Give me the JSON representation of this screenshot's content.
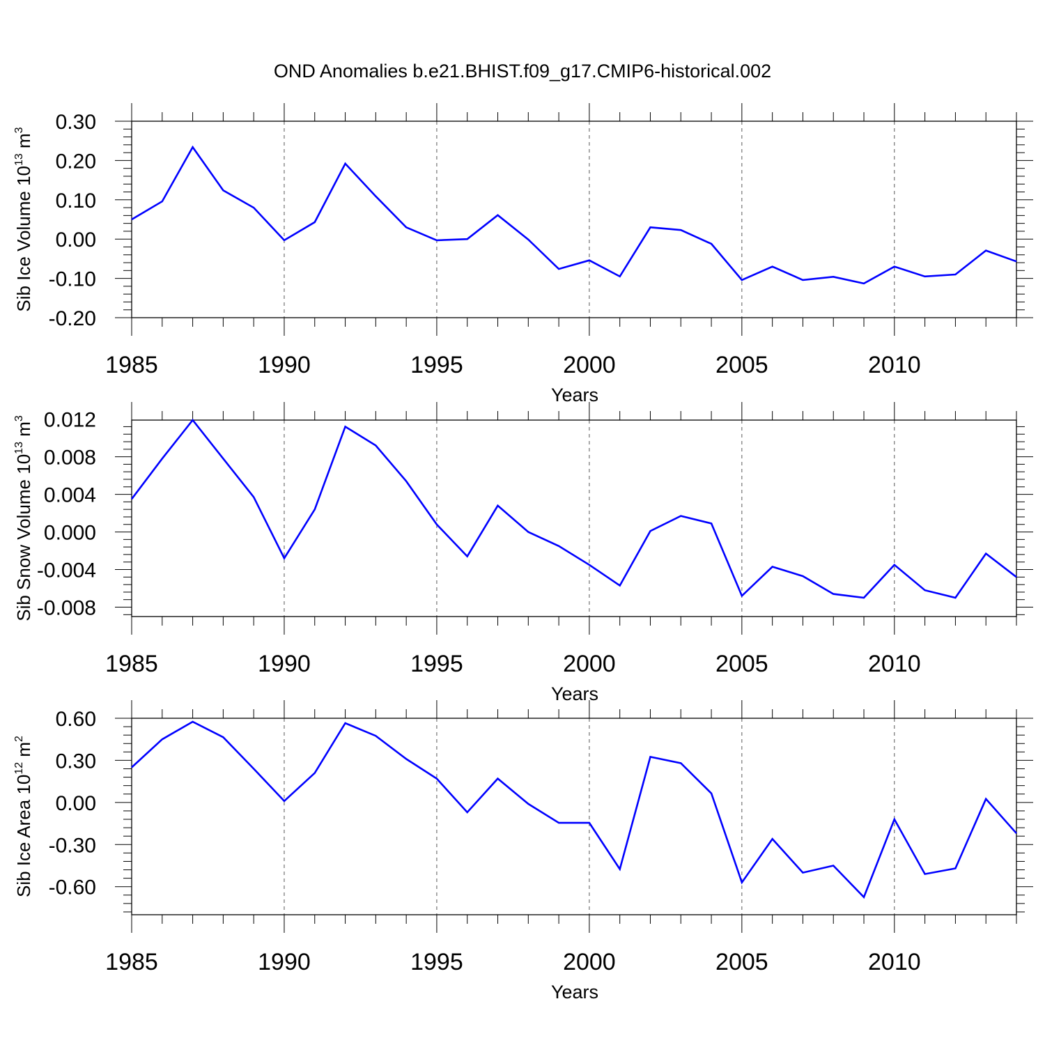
{
  "title": "OND Anomalies b.e21.BHIST.f09_g17.CMIP6-historical.002",
  "line_color": "#0000ff",
  "chart_data": [
    {
      "type": "line",
      "title": "OND Anomalies b.e21.BHIST.f09_g17.CMIP6-historical.002",
      "xlabel": "Years",
      "ylabel": {
        "text": "Sib Ice Volume 10",
        "exp": "13",
        "unit": " m",
        "unit_exp": "3"
      },
      "xlim": [
        1985,
        2014
      ],
      "ylim": [
        -0.2,
        0.3
      ],
      "x_ticks": [
        "1985",
        "1990",
        "1995",
        "2000",
        "2005",
        "2010"
      ],
      "y_ticks": [
        "0.30",
        "0.20",
        "0.10",
        "0.00",
        "-0.10",
        "-0.20"
      ],
      "y_tick_values": [
        0.3,
        0.2,
        0.1,
        0.0,
        -0.1,
        -0.2
      ],
      "grid": "dashed vertical at major x ticks",
      "x": [
        1985,
        1986,
        1987,
        1988,
        1989,
        1990,
        1991,
        1992,
        1993,
        1994,
        1995,
        1996,
        1997,
        1998,
        1999,
        2000,
        2001,
        2002,
        2003,
        2004,
        2005,
        2006,
        2007,
        2008,
        2009,
        2010,
        2011,
        2012,
        2013,
        2014
      ],
      "values": [
        0.05,
        0.096,
        0.234,
        0.124,
        0.08,
        -0.003,
        0.043,
        0.192,
        0.109,
        0.03,
        -0.003,
        0.0,
        0.061,
        -0.001,
        -0.076,
        -0.054,
        -0.095,
        0.03,
        0.023,
        -0.012,
        -0.104,
        -0.07,
        -0.104,
        -0.096,
        -0.113,
        -0.07,
        -0.095,
        -0.09,
        -0.029,
        -0.057
      ]
    },
    {
      "type": "line",
      "xlabel": "Years",
      "ylabel": {
        "text": "Sib Snow Volume 10",
        "exp": "13",
        "unit": " m",
        "unit_exp": "3"
      },
      "xlim": [
        1985,
        2014
      ],
      "ylim": [
        -0.009,
        0.0119
      ],
      "x_ticks": [
        "1985",
        "1990",
        "1995",
        "2000",
        "2005",
        "2010"
      ],
      "y_ticks": [
        "0.012",
        "0.008",
        "0.004",
        "0.000",
        "-0.004",
        "-0.008"
      ],
      "y_tick_values": [
        0.012,
        0.008,
        0.004,
        0.0,
        -0.004,
        -0.008
      ],
      "grid": "dashed vertical at major x ticks",
      "x": [
        1985,
        1986,
        1987,
        1988,
        1989,
        1990,
        1991,
        1992,
        1993,
        1994,
        1995,
        1996,
        1997,
        1998,
        1999,
        2000,
        2001,
        2002,
        2003,
        2004,
        2005,
        2006,
        2007,
        2008,
        2009,
        2010,
        2011,
        2012,
        2013,
        2014
      ],
      "values": [
        0.0035,
        0.0078,
        0.0119,
        0.0078,
        0.0037,
        -0.0028,
        0.0024,
        0.0112,
        0.0092,
        0.0054,
        0.0008,
        -0.0026,
        0.0028,
        0.0,
        -0.0015,
        -0.0035,
        -0.0057,
        0.0001,
        0.0017,
        0.0009,
        -0.0068,
        -0.0037,
        -0.0047,
        -0.0066,
        -0.007,
        -0.0035,
        -0.0062,
        -0.007,
        -0.0023,
        -0.0048
      ]
    },
    {
      "type": "line",
      "xlabel": "Years",
      "ylabel": {
        "text": "Sib Ice Area 10",
        "exp": "12",
        "unit": " m",
        "unit_exp": "2"
      },
      "xlim": [
        1985,
        2014
      ],
      "ylim": [
        -0.8,
        0.6
      ],
      "x_ticks": [
        "1985",
        "1990",
        "1995",
        "2000",
        "2005",
        "2010"
      ],
      "y_ticks": [
        "0.60",
        "0.30",
        "0.00",
        "-0.30",
        "-0.60"
      ],
      "y_tick_values": [
        0.6,
        0.3,
        0.0,
        -0.3,
        -0.6
      ],
      "grid": "dashed vertical at major x ticks",
      "x": [
        1985,
        1986,
        1987,
        1988,
        1989,
        1990,
        1991,
        1992,
        1993,
        1994,
        1995,
        1996,
        1997,
        1998,
        1999,
        2000,
        2001,
        2002,
        2003,
        2004,
        2005,
        2006,
        2007,
        2008,
        2009,
        2010,
        2011,
        2012,
        2013,
        2014
      ],
      "values": [
        0.25,
        0.45,
        0.575,
        0.465,
        0.24,
        0.01,
        0.21,
        0.565,
        0.475,
        0.31,
        0.17,
        -0.07,
        0.17,
        -0.01,
        -0.145,
        -0.145,
        -0.475,
        0.325,
        0.28,
        0.065,
        -0.57,
        -0.26,
        -0.5,
        -0.45,
        -0.675,
        -0.12,
        -0.51,
        -0.47,
        0.025,
        -0.22
      ]
    }
  ]
}
